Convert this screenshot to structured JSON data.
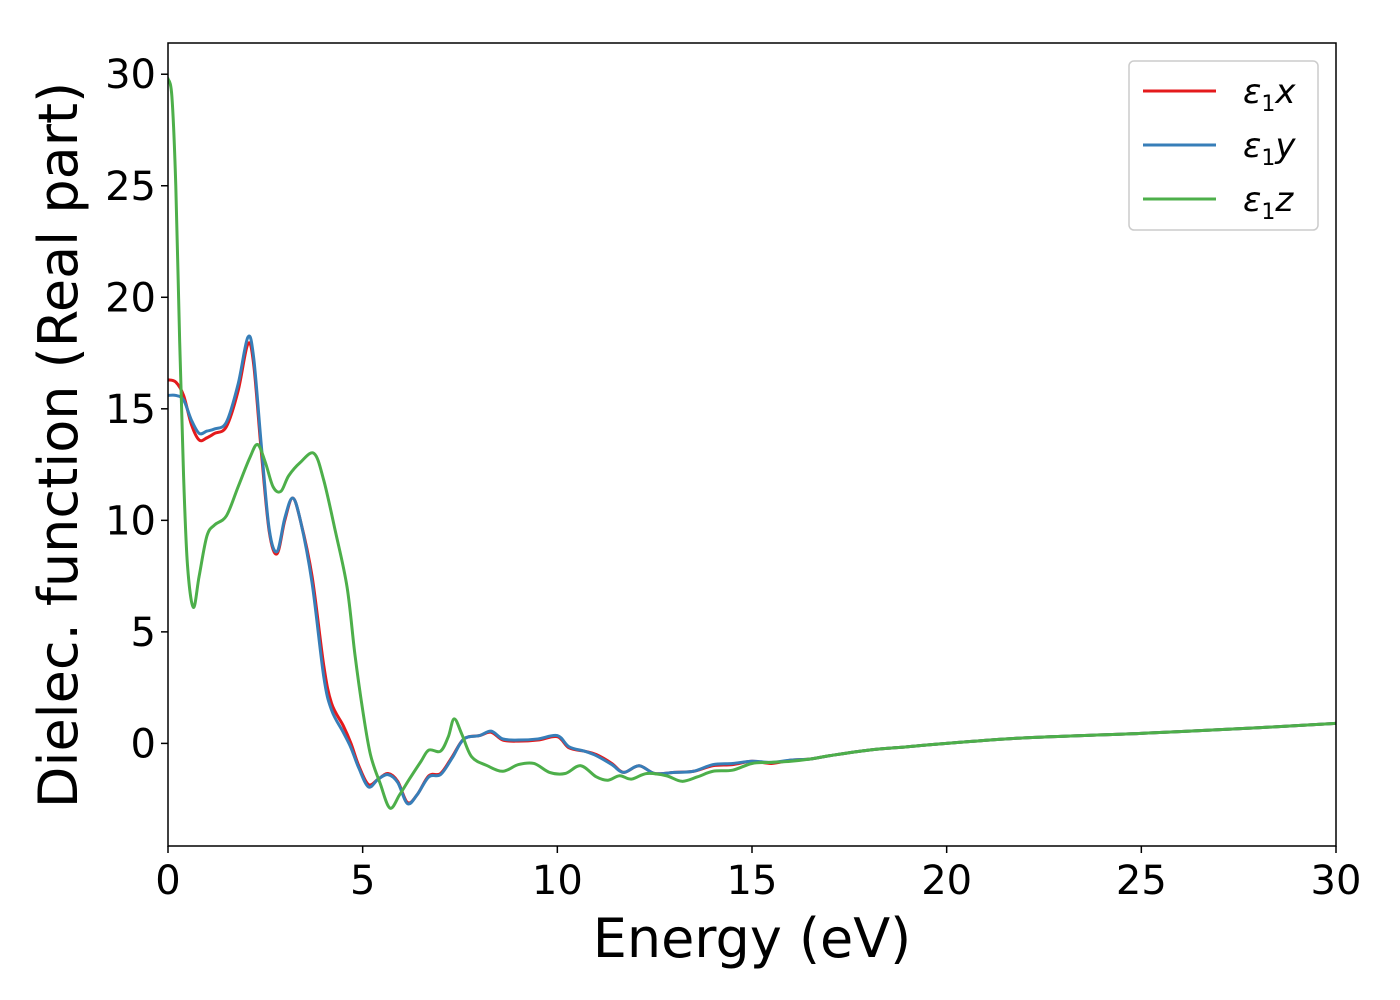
{
  "chart_data": {
    "type": "line",
    "title": "",
    "xlabel": "Energy (eV)",
    "ylabel": "Dielec. function (Real part)",
    "xlim": [
      0,
      30
    ],
    "ylim": [
      -4.6,
      31.4
    ],
    "xticks": [
      0,
      5,
      10,
      15,
      20,
      25,
      30
    ],
    "yticks": [
      0,
      5,
      10,
      15,
      20,
      25,
      30
    ],
    "grid": false,
    "legend_position": "top-right",
    "series": [
      {
        "name": "ε1x",
        "legend_main": "ε",
        "legend_sub": "1",
        "legend_var": "x",
        "color": "#e41a1c",
        "points": [
          [
            0,
            16.3
          ],
          [
            0.2,
            16.2
          ],
          [
            0.4,
            15.6
          ],
          [
            0.6,
            14.3
          ],
          [
            0.8,
            13.6
          ],
          [
            1.0,
            13.7
          ],
          [
            1.2,
            13.9
          ],
          [
            1.5,
            14.2
          ],
          [
            1.8,
            15.8
          ],
          [
            2.05,
            17.9
          ],
          [
            2.2,
            17.0
          ],
          [
            2.4,
            13.0
          ],
          [
            2.6,
            9.5
          ],
          [
            2.8,
            8.5
          ],
          [
            3.0,
            10.0
          ],
          [
            3.2,
            11.0
          ],
          [
            3.4,
            10.0
          ],
          [
            3.7,
            7.5
          ],
          [
            4.0,
            3.5
          ],
          [
            4.2,
            1.8
          ],
          [
            4.5,
            0.8
          ],
          [
            4.7,
            0.0
          ],
          [
            4.9,
            -1.0
          ],
          [
            5.15,
            -1.85
          ],
          [
            5.4,
            -1.6
          ],
          [
            5.65,
            -1.35
          ],
          [
            5.9,
            -1.7
          ],
          [
            6.15,
            -2.65
          ],
          [
            6.4,
            -2.3
          ],
          [
            6.7,
            -1.45
          ],
          [
            7.0,
            -1.35
          ],
          [
            7.3,
            -0.6
          ],
          [
            7.6,
            0.2
          ],
          [
            8.0,
            0.35
          ],
          [
            8.3,
            0.5
          ],
          [
            8.6,
            0.15
          ],
          [
            9.0,
            0.1
          ],
          [
            9.5,
            0.15
          ],
          [
            10.0,
            0.3
          ],
          [
            10.3,
            -0.2
          ],
          [
            10.7,
            -0.35
          ],
          [
            11.0,
            -0.5
          ],
          [
            11.4,
            -0.9
          ],
          [
            11.7,
            -1.3
          ],
          [
            12.1,
            -1.0
          ],
          [
            12.5,
            -1.35
          ],
          [
            13.0,
            -1.3
          ],
          [
            13.5,
            -1.25
          ],
          [
            14.0,
            -1.0
          ],
          [
            14.5,
            -0.95
          ],
          [
            15.0,
            -0.8
          ],
          [
            15.5,
            -0.9
          ],
          [
            16.0,
            -0.75
          ],
          [
            16.5,
            -0.7
          ],
          [
            17.0,
            -0.55
          ],
          [
            18.0,
            -0.3
          ],
          [
            19.0,
            -0.15
          ],
          [
            20.0,
            0.0
          ],
          [
            22.0,
            0.25
          ],
          [
            25.0,
            0.45
          ],
          [
            28.0,
            0.7
          ],
          [
            30.0,
            0.9
          ]
        ]
      },
      {
        "name": "ε1y",
        "legend_main": "ε",
        "legend_sub": "1",
        "legend_var": "y",
        "color": "#377eb8",
        "points": [
          [
            0,
            15.6
          ],
          [
            0.2,
            15.6
          ],
          [
            0.4,
            15.4
          ],
          [
            0.6,
            14.5
          ],
          [
            0.8,
            13.9
          ],
          [
            1.0,
            14.0
          ],
          [
            1.2,
            14.1
          ],
          [
            1.5,
            14.4
          ],
          [
            1.8,
            16.1
          ],
          [
            2.05,
            18.2
          ],
          [
            2.2,
            17.3
          ],
          [
            2.4,
            13.3
          ],
          [
            2.6,
            9.6
          ],
          [
            2.8,
            8.6
          ],
          [
            3.0,
            10.1
          ],
          [
            3.2,
            11.0
          ],
          [
            3.4,
            10.0
          ],
          [
            3.7,
            7.2
          ],
          [
            4.0,
            3.0
          ],
          [
            4.2,
            1.5
          ],
          [
            4.5,
            0.5
          ],
          [
            4.7,
            -0.2
          ],
          [
            4.9,
            -1.1
          ],
          [
            5.15,
            -1.95
          ],
          [
            5.4,
            -1.6
          ],
          [
            5.65,
            -1.4
          ],
          [
            5.9,
            -1.75
          ],
          [
            6.15,
            -2.7
          ],
          [
            6.4,
            -2.3
          ],
          [
            6.7,
            -1.5
          ],
          [
            7.0,
            -1.4
          ],
          [
            7.3,
            -0.65
          ],
          [
            7.6,
            0.2
          ],
          [
            8.0,
            0.35
          ],
          [
            8.3,
            0.55
          ],
          [
            8.6,
            0.2
          ],
          [
            9.0,
            0.15
          ],
          [
            9.5,
            0.2
          ],
          [
            10.0,
            0.35
          ],
          [
            10.3,
            -0.15
          ],
          [
            10.7,
            -0.35
          ],
          [
            11.0,
            -0.55
          ],
          [
            11.4,
            -0.95
          ],
          [
            11.7,
            -1.3
          ],
          [
            12.1,
            -1.0
          ],
          [
            12.5,
            -1.35
          ],
          [
            13.0,
            -1.3
          ],
          [
            13.5,
            -1.25
          ],
          [
            14.0,
            -0.95
          ],
          [
            14.5,
            -0.9
          ],
          [
            15.0,
            -0.8
          ],
          [
            15.5,
            -0.85
          ],
          [
            16.0,
            -0.75
          ],
          [
            16.5,
            -0.7
          ],
          [
            17.0,
            -0.55
          ],
          [
            18.0,
            -0.3
          ],
          [
            19.0,
            -0.15
          ],
          [
            20.0,
            0.0
          ],
          [
            22.0,
            0.25
          ],
          [
            25.0,
            0.45
          ],
          [
            28.0,
            0.7
          ],
          [
            30.0,
            0.9
          ]
        ]
      },
      {
        "name": "ε1z",
        "legend_main": "ε",
        "legend_sub": "1",
        "legend_var": "z",
        "color": "#4daf4a",
        "points": [
          [
            0,
            29.8
          ],
          [
            0.1,
            29.0
          ],
          [
            0.2,
            25.0
          ],
          [
            0.3,
            18.0
          ],
          [
            0.4,
            12.0
          ],
          [
            0.5,
            8.0
          ],
          [
            0.65,
            6.1
          ],
          [
            0.8,
            7.5
          ],
          [
            1.0,
            9.3
          ],
          [
            1.2,
            9.8
          ],
          [
            1.5,
            10.2
          ],
          [
            1.8,
            11.5
          ],
          [
            2.1,
            12.8
          ],
          [
            2.3,
            13.4
          ],
          [
            2.5,
            12.6
          ],
          [
            2.7,
            11.5
          ],
          [
            2.9,
            11.3
          ],
          [
            3.1,
            12.0
          ],
          [
            3.4,
            12.6
          ],
          [
            3.75,
            13.0
          ],
          [
            4.0,
            11.8
          ],
          [
            4.3,
            9.5
          ],
          [
            4.6,
            7.0
          ],
          [
            4.8,
            4.0
          ],
          [
            5.0,
            1.5
          ],
          [
            5.2,
            -0.5
          ],
          [
            5.45,
            -1.8
          ],
          [
            5.7,
            -2.9
          ],
          [
            5.95,
            -2.3
          ],
          [
            6.2,
            -1.6
          ],
          [
            6.5,
            -0.8
          ],
          [
            6.7,
            -0.3
          ],
          [
            7.0,
            -0.35
          ],
          [
            7.2,
            0.3
          ],
          [
            7.35,
            1.1
          ],
          [
            7.55,
            0.4
          ],
          [
            7.8,
            -0.6
          ],
          [
            8.2,
            -1.0
          ],
          [
            8.6,
            -1.25
          ],
          [
            9.0,
            -0.95
          ],
          [
            9.4,
            -0.9
          ],
          [
            9.8,
            -1.3
          ],
          [
            10.2,
            -1.35
          ],
          [
            10.6,
            -1.0
          ],
          [
            11.0,
            -1.5
          ],
          [
            11.3,
            -1.65
          ],
          [
            11.6,
            -1.45
          ],
          [
            11.9,
            -1.6
          ],
          [
            12.3,
            -1.35
          ],
          [
            12.8,
            -1.45
          ],
          [
            13.2,
            -1.7
          ],
          [
            13.6,
            -1.5
          ],
          [
            14.0,
            -1.25
          ],
          [
            14.5,
            -1.2
          ],
          [
            15.0,
            -0.9
          ],
          [
            15.5,
            -0.85
          ],
          [
            16.0,
            -0.8
          ],
          [
            16.5,
            -0.7
          ],
          [
            17.0,
            -0.55
          ],
          [
            18.0,
            -0.3
          ],
          [
            19.0,
            -0.15
          ],
          [
            20.0,
            0.0
          ],
          [
            22.0,
            0.25
          ],
          [
            25.0,
            0.45
          ],
          [
            28.0,
            0.7
          ],
          [
            30.0,
            0.9
          ]
        ]
      }
    ]
  }
}
